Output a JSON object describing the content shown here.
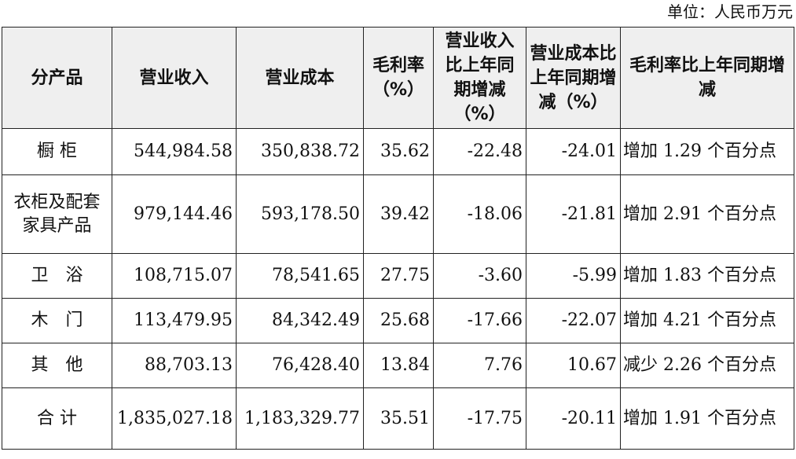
{
  "unit": "单位：人民币万元",
  "headers": {
    "product": "分产品",
    "revenue": "营业收入",
    "cost": "营业成本",
    "margin": "毛利率（%）",
    "revenue_change": "营业收入比上年同期增减（%）",
    "cost_change": "营业成本比上年同期增减（%）",
    "margin_change": "毛利率比上年同期增减"
  },
  "rows": [
    {
      "product": "橱 柜",
      "revenue": "544,984.58",
      "cost": "350,838.72",
      "margin": "35.62",
      "revenue_change": "-22.48",
      "cost_change": "-24.01",
      "margin_change": "增加 1.29 个百分点"
    },
    {
      "product": "衣柜及配套家具产品",
      "revenue": "979,144.46",
      "cost": "593,178.50",
      "margin": "39.42",
      "revenue_change": "-18.06",
      "cost_change": "-21.81",
      "margin_change": "增加 2.91 个百分点"
    },
    {
      "product": "卫　浴",
      "revenue": "108,715.07",
      "cost": "78,541.65",
      "margin": "27.75",
      "revenue_change": "-3.60",
      "cost_change": "-5.99",
      "margin_change": "增加 1.83 个百分点"
    },
    {
      "product": "木　门",
      "revenue": "113,479.95",
      "cost": "84,342.49",
      "margin": "25.68",
      "revenue_change": "-17.66",
      "cost_change": "-22.07",
      "margin_change": "增加 4.21 个百分点"
    },
    {
      "product": "其　他",
      "revenue": "88,703.13",
      "cost": "76,428.40",
      "margin": "13.84",
      "revenue_change": "7.76",
      "cost_change": "10.67",
      "margin_change": "减少 2.26 个百分点"
    },
    {
      "product": "合 计",
      "revenue": "1,835,027.18",
      "cost": "1,183,329.77",
      "margin": "35.51",
      "revenue_change": "-17.75",
      "cost_change": "-20.11",
      "margin_change": "增加 1.91 个百分点"
    }
  ]
}
